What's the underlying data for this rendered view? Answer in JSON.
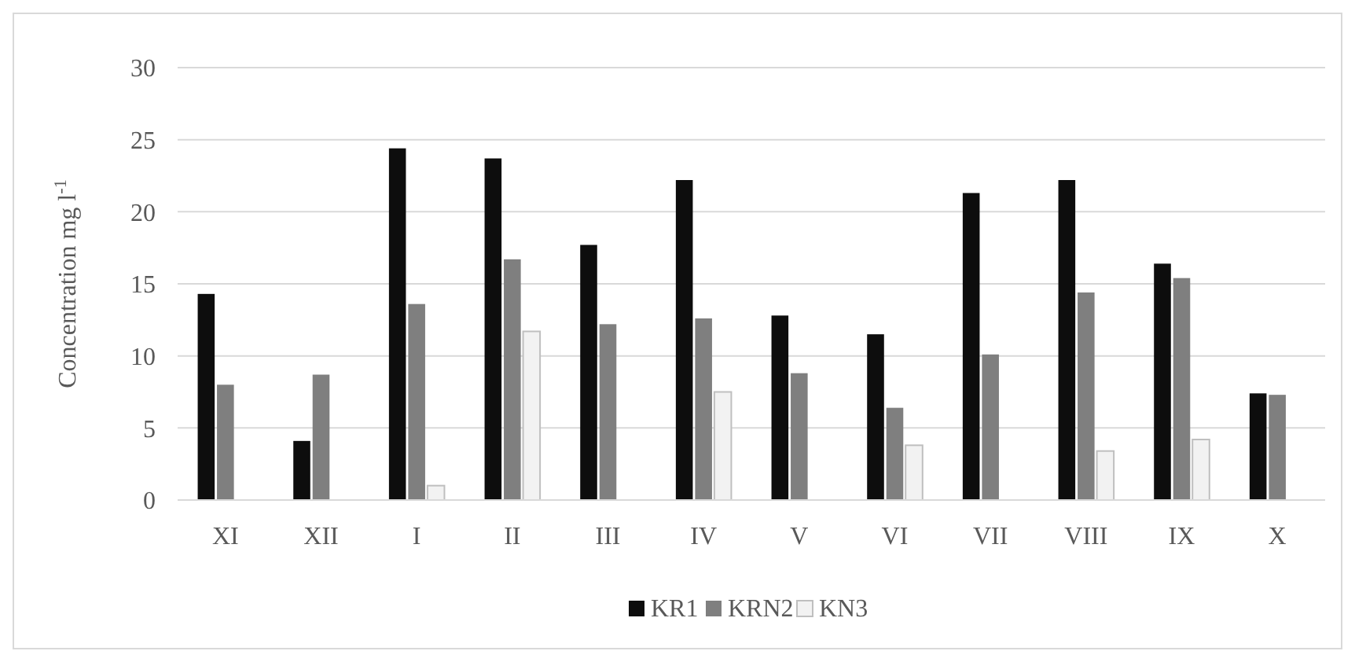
{
  "chart_data": {
    "type": "bar",
    "ylabel": "Concentration mg l$^{-1}$",
    "categories": [
      "XI",
      "XII",
      "I",
      "II",
      "III",
      "IV",
      "V",
      "VI",
      "VII",
      "VIII",
      "IX",
      "X"
    ],
    "series": [
      {
        "name": "KR1",
        "color": "#0d0d0d",
        "values": [
          14.3,
          4.1,
          24.4,
          23.7,
          17.7,
          22.2,
          12.8,
          11.5,
          21.3,
          22.2,
          16.4,
          7.4
        ]
      },
      {
        "name": "KRN2",
        "color": "#7f7f7f",
        "values": [
          8.0,
          8.7,
          13.6,
          16.7,
          12.2,
          12.6,
          8.8,
          6.4,
          10.1,
          14.4,
          15.4,
          7.3
        ]
      },
      {
        "name": "KN3",
        "color": "#f2f2f2",
        "values": [
          null,
          null,
          1.0,
          11.7,
          null,
          7.5,
          null,
          3.8,
          null,
          3.4,
          4.2,
          null
        ]
      }
    ],
    "ylim": [
      0,
      30
    ],
    "yticks": [
      0,
      5,
      10,
      15,
      20,
      25,
      30
    ],
    "grid": "y",
    "legend": "bottom"
  }
}
